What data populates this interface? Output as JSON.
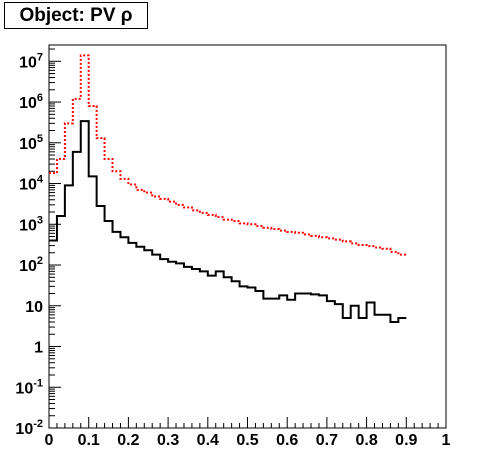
{
  "chart_data": {
    "type": "line",
    "title": "Object: PV ρ",
    "xlabel": "",
    "ylabel": "",
    "xlim": [
      0,
      1
    ],
    "ylim_log10": [
      -2,
      7.4
    ],
    "yscale": "log",
    "grid": false,
    "x_ticks": [
      "0",
      "0.1",
      "0.2",
      "0.3",
      "0.4",
      "0.5",
      "0.6",
      "0.7",
      "0.8",
      "0.9",
      "1"
    ],
    "y_ticks": [
      {
        "base": "10",
        "exp": "-2",
        "v": -2
      },
      {
        "base": "10",
        "exp": "-1",
        "v": -1
      },
      {
        "base": "1",
        "exp": "",
        "v": 0
      },
      {
        "base": "10",
        "exp": "",
        "v": 1
      },
      {
        "base": "10",
        "exp": "2",
        "v": 2
      },
      {
        "base": "10",
        "exp": "3",
        "v": 3
      },
      {
        "base": "10",
        "exp": "4",
        "v": 4
      },
      {
        "base": "10",
        "exp": "5",
        "v": 5
      },
      {
        "base": "10",
        "exp": "6",
        "v": 6
      },
      {
        "base": "10",
        "exp": "7",
        "v": 7
      }
    ],
    "bin_width": 0.02,
    "series": [
      {
        "color": "#ff0000",
        "style": "dotted-step",
        "values": [
          18000,
          40000,
          300000,
          1200000,
          14000000,
          800000,
          130000,
          40000,
          20000,
          13000,
          9500,
          7000,
          6000,
          4800,
          4200,
          3600,
          3000,
          2600,
          2200,
          1900,
          1700,
          1500,
          1300,
          1200,
          1050,
          1000,
          900,
          820,
          760,
          700,
          650,
          620,
          560,
          520,
          480,
          450,
          420,
          380,
          340,
          310,
          290,
          270,
          250,
          210,
          180
        ]
      },
      {
        "color": "#000000",
        "style": "solid-step",
        "values": [
          400,
          1600,
          9000,
          60000,
          340000,
          15000,
          2800,
          1200,
          650,
          480,
          350,
          280,
          230,
          180,
          140,
          120,
          110,
          90,
          80,
          70,
          55,
          70,
          50,
          40,
          30,
          28,
          23,
          15,
          15,
          18,
          14,
          20,
          20,
          19,
          18,
          13,
          11,
          5,
          10,
          5,
          12,
          6,
          6,
          4,
          5
        ]
      }
    ]
  }
}
